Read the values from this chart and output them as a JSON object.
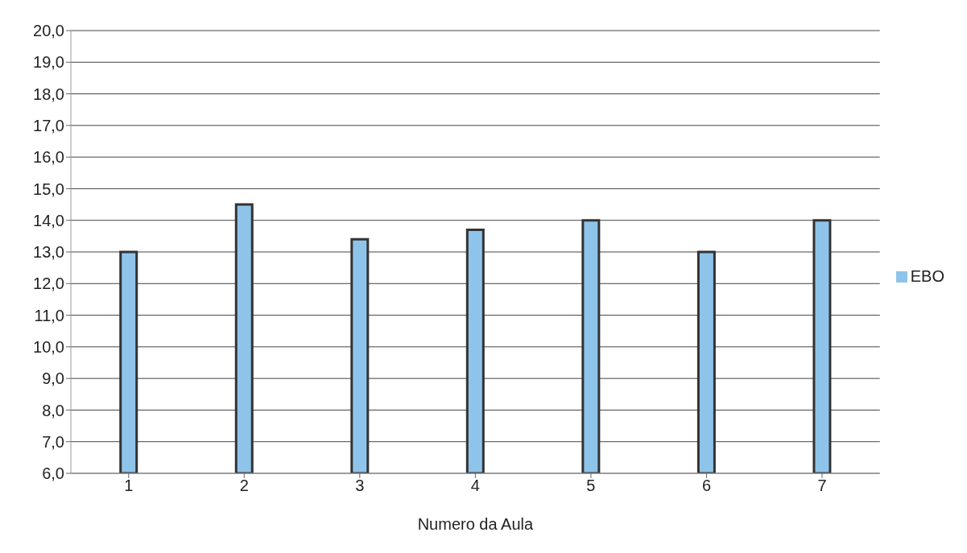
{
  "chart_data": {
    "type": "bar",
    "xlabel": "Numero da Aula",
    "categories": [
      "1",
      "2",
      "3",
      "4",
      "5",
      "6",
      "7"
    ],
    "series": [
      {
        "name": "EBO",
        "color": "#8fc4ea",
        "values": [
          13.0,
          14.5,
          13.4,
          13.7,
          14.0,
          13.0,
          14.0
        ]
      }
    ],
    "ylim": [
      6,
      20
    ],
    "yticks": [
      {
        "value": 6,
        "label": "6,0"
      },
      {
        "value": 7,
        "label": "7,0"
      },
      {
        "value": 8,
        "label": "8,0"
      },
      {
        "value": 9,
        "label": "9,0"
      },
      {
        "value": 10,
        "label": "10,0"
      },
      {
        "value": 11,
        "label": "11,0"
      },
      {
        "value": 12,
        "label": "12,0"
      },
      {
        "value": 13,
        "label": "13,0"
      },
      {
        "value": 14,
        "label": "14,0"
      },
      {
        "value": 15,
        "label": "15,0"
      },
      {
        "value": 16,
        "label": "16,0"
      },
      {
        "value": 17,
        "label": "17,0"
      },
      {
        "value": 18,
        "label": "18,0"
      },
      {
        "value": 19,
        "label": "19,0"
      },
      {
        "value": 20,
        "label": "20,0"
      }
    ],
    "grid": "y",
    "legend": "right"
  }
}
